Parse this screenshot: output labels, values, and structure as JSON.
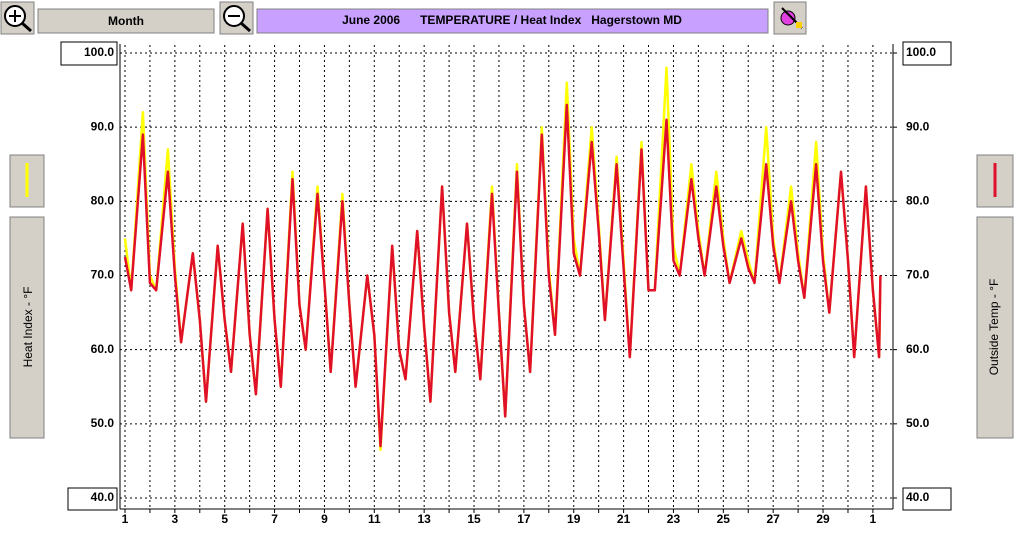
{
  "chart_data": {
    "type": "line",
    "title": "June 2006      TEMPERATURE / Heat Index   Hagerstown MD",
    "range_button": "Month",
    "x": [
      1,
      1.25,
      1.72,
      2,
      2.25,
      2.72,
      3,
      3.25,
      3.72,
      4,
      4.25,
      4.72,
      5,
      5.25,
      5.72,
      6,
      6.25,
      6.72,
      7,
      7.25,
      7.72,
      8,
      8.25,
      8.72,
      9,
      9.25,
      9.72,
      10,
      10.25,
      10.72,
      11,
      11.25,
      11.72,
      12,
      12.25,
      12.72,
      13,
      13.25,
      13.72,
      14,
      14.25,
      14.72,
      15,
      15.25,
      15.72,
      16,
      16.25,
      16.72,
      17,
      17.25,
      17.72,
      18,
      18.25,
      18.72,
      19,
      19.25,
      19.72,
      20,
      20.25,
      20.72,
      21,
      21.25,
      21.72,
      22,
      22.25,
      22.72,
      23,
      23.25,
      23.72,
      24,
      24.25,
      24.72,
      25,
      25.25,
      25.72,
      26,
      26.25,
      26.72,
      27,
      27.25,
      27.72,
      28,
      28.25,
      28.72,
      29,
      29.25,
      29.72,
      30,
      30.25,
      30.72,
      31,
      31.25,
      31.3
    ],
    "series": [
      {
        "name": "Heat Index - °F",
        "color": "#ffff00",
        "axis": "y",
        "values": [
          75,
          68,
          92,
          70,
          68,
          87,
          71,
          61,
          73,
          64,
          53,
          74,
          64,
          57,
          77,
          62,
          54,
          79,
          64,
          55,
          84,
          66,
          60,
          82,
          69,
          57,
          81,
          66,
          55,
          70,
          62,
          46.5,
          74,
          60,
          56,
          76,
          63,
          53,
          82,
          65,
          57,
          77,
          64,
          56,
          82,
          65,
          51,
          85,
          66,
          57,
          90,
          71,
          62,
          96,
          75,
          70,
          90,
          77,
          64,
          86,
          72,
          59,
          88,
          68,
          68,
          98,
          74,
          70,
          85,
          76,
          70,
          84,
          75,
          69,
          76,
          72,
          69,
          90,
          75,
          69,
          82,
          73,
          67,
          88,
          73,
          65,
          84,
          72,
          59,
          82,
          68,
          59,
          70
        ]
      },
      {
        "name": "Outside Temp - °F",
        "color": "#e0102a",
        "axis": "y2",
        "values": [
          72.5,
          68,
          89,
          69,
          68,
          84,
          70,
          61,
          73,
          64,
          53,
          74,
          64,
          57,
          77,
          62,
          54,
          79,
          64,
          55,
          83,
          66,
          60,
          81,
          69,
          57,
          80,
          66,
          55,
          70,
          62,
          47,
          74,
          60,
          56,
          76,
          63,
          53,
          82,
          65,
          57,
          77,
          64,
          56,
          81,
          65,
          51,
          84,
          66,
          57,
          89,
          70,
          62,
          93,
          73,
          70,
          88,
          76,
          64,
          85,
          71,
          59,
          87,
          68,
          68,
          91,
          72,
          70,
          83,
          75,
          70,
          82,
          74,
          69,
          75,
          71,
          69,
          85,
          74,
          69,
          80,
          72,
          67,
          85,
          72,
          65,
          84,
          72,
          59,
          82,
          68,
          59,
          70
        ]
      }
    ],
    "xlim": [
      1,
      31.8
    ],
    "xticks": [
      1,
      {
        "value": 2,
        "label": null
      },
      3,
      {
        "value": 4,
        "label": null
      },
      5,
      {
        "value": 6,
        "label": null
      },
      7,
      {
        "value": 8,
        "label": null
      },
      9,
      {
        "value": 10,
        "label": null
      },
      11,
      {
        "value": 12,
        "label": null
      },
      13,
      {
        "value": 14,
        "label": null
      },
      15,
      {
        "value": 16,
        "label": null
      },
      17,
      {
        "value": 18,
        "label": null
      },
      19,
      {
        "value": 20,
        "label": null
      },
      21,
      {
        "value": 22,
        "label": null
      },
      23,
      {
        "value": 24,
        "label": null
      },
      25,
      {
        "value": 26,
        "label": null
      },
      27,
      {
        "value": 28,
        "label": null
      },
      29,
      {
        "value": 30,
        "label": null
      },
      {
        "value": 31,
        "label": "1"
      }
    ],
    "ylim": [
      40,
      100
    ],
    "yticks": [
      {
        "value": 40,
        "label": "40.0"
      },
      {
        "value": 50,
        "label": "50.0"
      },
      {
        "value": 60,
        "label": "60.0"
      },
      {
        "value": 70,
        "label": "70.0"
      },
      {
        "value": 80,
        "label": "80.0"
      },
      {
        "value": 90,
        "label": "90.0"
      },
      {
        "value": 100,
        "label": "100.0"
      }
    ],
    "y2lim": [
      40,
      100
    ],
    "y2ticks": [
      {
        "value": 40,
        "label": "40.0"
      },
      {
        "value": 50,
        "label": "50.0"
      },
      {
        "value": 60,
        "label": "60.0"
      },
      {
        "value": 70,
        "label": "70.0"
      },
      {
        "value": 80,
        "label": "80.0"
      },
      {
        "value": 90,
        "label": "90.0"
      },
      {
        "value": 100,
        "label": "100.0"
      }
    ],
    "grid": true
  }
}
